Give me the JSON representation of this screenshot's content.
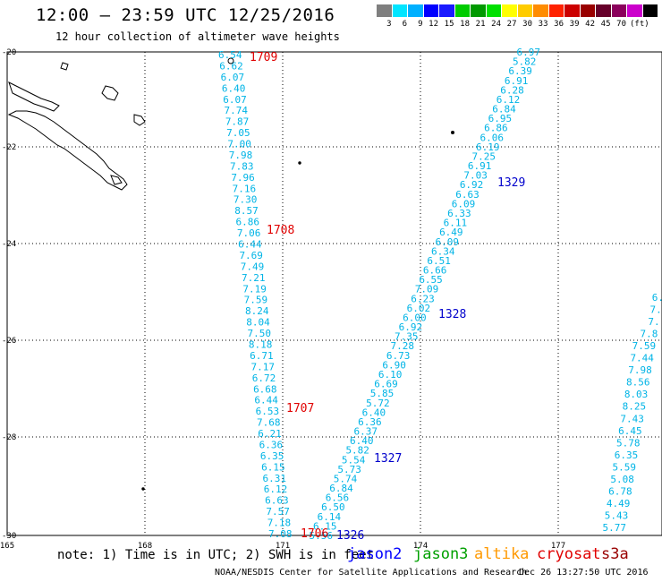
{
  "header": {
    "title": "12:00 — 23:59 UTC 12/25/2016",
    "subtitle": "12 hour collection of altimeter wave heights"
  },
  "colorbar": {
    "colors": [
      "#7f7f7f",
      "#00e5ff",
      "#00b0ff",
      "#0000ff",
      "#1a1aff",
      "#00cc00",
      "#009900",
      "#00e000",
      "#ffff00",
      "#ffcc00",
      "#ff8c00",
      "#ff2200",
      "#cc0000",
      "#990000",
      "#66002a",
      "#8b005c",
      "#cc00cc",
      "#000000"
    ],
    "labels": [
      "3",
      "6",
      "9",
      "12",
      "15",
      "18",
      "21",
      "24",
      "27",
      "30",
      "33",
      "36",
      "39",
      "42",
      "45",
      "70",
      "(ft)"
    ]
  },
  "map": {
    "lon_ticks": [
      "165",
      "168",
      "171",
      "174",
      "177"
    ],
    "lat_ticks": [
      "-20",
      "-22",
      "-24",
      "-26",
      "-28",
      "-30"
    ]
  },
  "tracks": {
    "left_values": [
      "6.54",
      "6.62",
      "6.07",
      "6.40",
      "6.07",
      "7.74",
      "7.87",
      "7.05",
      "7.00",
      "7.98",
      "7.83",
      "7.96",
      "7.16",
      "7.30",
      "8.57",
      "6.86",
      "7.06",
      "6.44",
      "7.69",
      "7.49",
      "7.21",
      "7.19",
      "7.59",
      "8.24",
      "8.04",
      "7.50",
      "8.18",
      "6.71",
      "7.17",
      "6.72",
      "6.68",
      "6.44",
      "6.53",
      "7.68",
      "6.21",
      "6.36",
      "6.35",
      "6.15",
      "6.31",
      "6.12",
      "6.63",
      "7.57",
      "7.18",
      "7.08"
    ],
    "middle_values": [
      "6.97",
      "5.82",
      "6.39",
      "6.91",
      "6.28",
      "6.12",
      "6.84",
      "6.95",
      "6.86",
      "6.06",
      "6.19",
      "7.25",
      "6.91",
      "7.03",
      "6.92",
      "6.63",
      "6.09",
      "6.33",
      "6.11",
      "6.49",
      "6.09",
      "6.34",
      "6.51",
      "6.66",
      "6.55",
      "7.09",
      "6.23",
      "6.02",
      "6.00",
      "6.92",
      "7.35",
      "7.28",
      "6.73",
      "6.90",
      "6.10",
      "6.69",
      "5.85",
      "5.72",
      "6.40",
      "6.36",
      "6.37",
      "6.40",
      "5.82",
      "5.54",
      "5.73",
      "5.74",
      "6.84",
      "6.56",
      "6.50",
      "6.14",
      "6.15",
      "5.56"
    ],
    "right_values": [
      "6.",
      "7.",
      "7.",
      "7.8",
      "7.59",
      "7.44",
      "7.98",
      "8.56",
      "8.03",
      "8.25",
      "7.43",
      "6.45",
      "5.78",
      "6.35",
      "5.59",
      "5.08",
      "6.78",
      "4.49",
      "5.43",
      "5.77"
    ],
    "pass_labels": [
      {
        "text": "1709",
        "color": "#e00000"
      },
      {
        "text": "1708",
        "color": "#e00000"
      },
      {
        "text": "1707",
        "color": "#e00000"
      },
      {
        "text": "1706",
        "color": "#e00000"
      },
      {
        "text": "1329",
        "color": "#0000cc"
      },
      {
        "text": "1328",
        "color": "#0000cc"
      },
      {
        "text": "1327",
        "color": "#0000cc"
      },
      {
        "text": "1326",
        "color": "#0000cc"
      }
    ],
    "value_color": "#00b4e6"
  },
  "footer": {
    "note": "note: 1) Time is in UTC; 2) SWH is in feet",
    "legend": [
      {
        "text": "jason2",
        "color": "#0000ff"
      },
      {
        "text": "jason3",
        "color": "#00a000"
      },
      {
        "text": "altika",
        "color": "#ff9900"
      },
      {
        "text": "cryosat",
        "color": "#e00000"
      },
      {
        "text": "s3a",
        "color": "#990000"
      }
    ],
    "credit": "NOAA/NESDIS Center for Satellite Applications and Research",
    "timestamp": "Dec 26 13:27:50 UTC 2016"
  }
}
